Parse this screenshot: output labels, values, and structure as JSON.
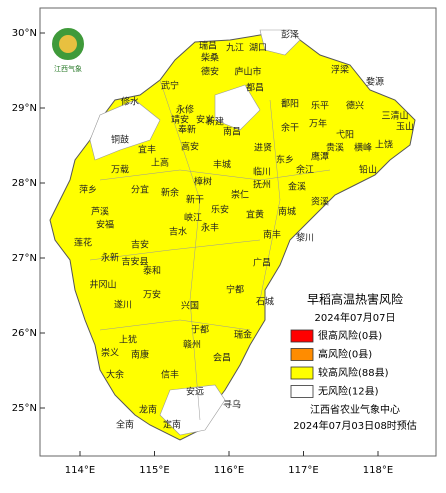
{
  "header": {
    "logo_text": "江西气象"
  },
  "map": {
    "places": [
      "瑞昌",
      "九江",
      "湖口",
      "彭泽",
      "柴桑",
      "德安",
      "庐山市",
      "都昌",
      "浮梁",
      "婺源",
      "武宁",
      "修水",
      "永修",
      "鄱阳",
      "乐平",
      "德兴",
      "三清山",
      "玉山",
      "靖安",
      "安义",
      "新建",
      "南昌",
      "余干",
      "万年",
      "弋阳",
      "上饶",
      "铜鼓",
      "奉新",
      "高安",
      "进贤",
      "东乡",
      "鹰潭",
      "贵溪",
      "铅山",
      "横峰",
      "宜丰",
      "上高",
      "万载",
      "丰城",
      "临川",
      "余江",
      "金溪",
      "资溪",
      "分宜",
      "新余",
      "樟树",
      "崇仁",
      "抚州",
      "萍乡",
      "芦溪",
      "宜黄",
      "南城",
      "黎川",
      "乐安",
      "新干",
      "峡江",
      "安福",
      "吉水",
      "永丰",
      "南丰",
      "莲花",
      "吉安",
      "吉安县",
      "泰和",
      "永新",
      "井冈山",
      "遂川",
      "万安",
      "兴国",
      "宁都",
      "广昌",
      "石城",
      "于都",
      "瑞金",
      "赣州",
      "上犹",
      "南康",
      "崇义",
      "大余",
      "信丰",
      "会昌",
      "安远",
      "龙南",
      "全南",
      "定南",
      "寻乌"
    ],
    "lat_ticks": [
      {
        "value": 30,
        "label": "30°N"
      },
      {
        "value": 29,
        "label": "29°N"
      },
      {
        "value": 28,
        "label": "28°N"
      },
      {
        "value": 27,
        "label": "27°N"
      },
      {
        "value": 26,
        "label": "26°N"
      },
      {
        "value": 25,
        "label": "25°N"
      }
    ],
    "lon_ticks": [
      {
        "value": 114,
        "label": "114°E"
      },
      {
        "value": 115,
        "label": "115°E"
      },
      {
        "value": 116,
        "label": "116°E"
      },
      {
        "value": 117,
        "label": "117°E"
      },
      {
        "value": 118,
        "label": "118°E"
      }
    ]
  },
  "legend": {
    "title": "早稻高温热害风险",
    "date": "2024年07月07日",
    "items": [
      {
        "label": "很高风险(0县)",
        "color": "#ff0000"
      },
      {
        "label": "高风险(0县)",
        "color": "#ff8c00"
      },
      {
        "label": "较高风险(88县)",
        "color": "#ffff00"
      },
      {
        "label": "无风险(12县)",
        "color": "#ffffff"
      }
    ]
  },
  "footer": {
    "source": "江西省农业气象中心",
    "issued": "2024年07月03日08时预估"
  }
}
